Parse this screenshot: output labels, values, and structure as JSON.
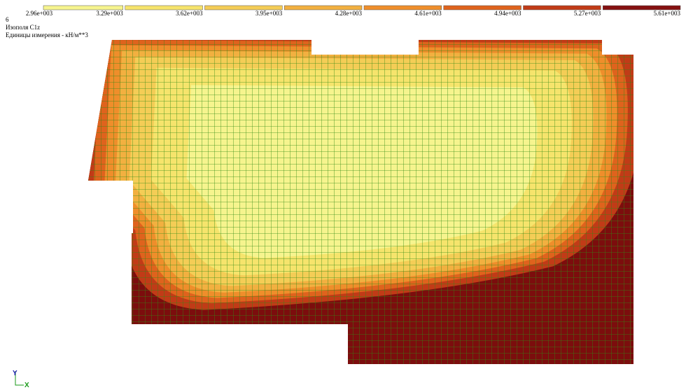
{
  "legend": {
    "labels": [
      "2.96e+003",
      "3.29e+003",
      "3.62e+003",
      "3.95e+003",
      "4.28e+003",
      "4.61e+003",
      "4.94e+003",
      "5.27e+003",
      "5.61e+003"
    ],
    "colors": [
      "#f6f48e",
      "#f6e46c",
      "#f4cd56",
      "#f2b040",
      "#ef8e2b",
      "#df631d",
      "#c13b17",
      "#851111"
    ]
  },
  "header": {
    "number": "6",
    "title": "Изополя C1z",
    "units": "Единицы измерения - кН/м**3"
  },
  "axes": {
    "y": "Y",
    "x": "X"
  }
}
